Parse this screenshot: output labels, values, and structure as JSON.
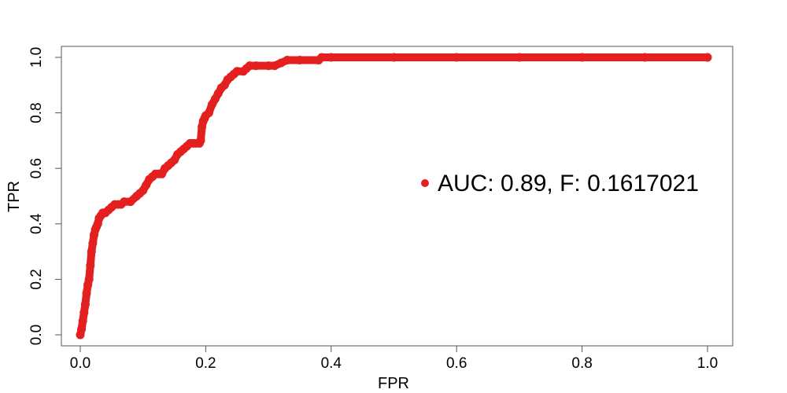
{
  "chart_data": {
    "type": "line",
    "title": "",
    "xlabel": "FPR",
    "ylabel": "TPR",
    "xlim": [
      0,
      1
    ],
    "ylim": [
      0,
      1
    ],
    "x_ticks": [
      "0.0",
      "0.2",
      "0.4",
      "0.6",
      "0.8",
      "1.0"
    ],
    "y_ticks": [
      "0.0",
      "0.2",
      "0.4",
      "0.6",
      "0.8",
      "1.0"
    ],
    "grid": false,
    "legend_position": "right",
    "colors": {
      "series": "#e3201f",
      "axes": "#000000",
      "background": "#ffffff"
    },
    "legend_label": "AUC: 0.89, F: 0.1617021",
    "series": [
      {
        "name": "AUC: 0.89, F: 0.1617021",
        "x": [
          0.0,
          0.002,
          0.004,
          0.006,
          0.008,
          0.01,
          0.012,
          0.014,
          0.016,
          0.018,
          0.02,
          0.022,
          0.024,
          0.026,
          0.028,
          0.03,
          0.033,
          0.036,
          0.04,
          0.045,
          0.05,
          0.055,
          0.06,
          0.065,
          0.07,
          0.08,
          0.09,
          0.095,
          0.1,
          0.105,
          0.11,
          0.115,
          0.12,
          0.125,
          0.13,
          0.135,
          0.14,
          0.145,
          0.15,
          0.155,
          0.16,
          0.165,
          0.17,
          0.175,
          0.18,
          0.185,
          0.19,
          0.192,
          0.194,
          0.196,
          0.198,
          0.2,
          0.205,
          0.21,
          0.215,
          0.22,
          0.225,
          0.23,
          0.235,
          0.24,
          0.245,
          0.25,
          0.26,
          0.265,
          0.27,
          0.28,
          0.3,
          0.31,
          0.32,
          0.33,
          0.35,
          0.38,
          0.385,
          0.4,
          0.5,
          0.6,
          0.7,
          0.8,
          0.9,
          1.0
        ],
        "y": [
          0.0,
          0.02,
          0.05,
          0.08,
          0.11,
          0.15,
          0.18,
          0.2,
          0.25,
          0.3,
          0.33,
          0.36,
          0.38,
          0.39,
          0.4,
          0.42,
          0.43,
          0.44,
          0.44,
          0.45,
          0.46,
          0.47,
          0.47,
          0.47,
          0.48,
          0.48,
          0.5,
          0.51,
          0.52,
          0.54,
          0.56,
          0.57,
          0.58,
          0.58,
          0.58,
          0.6,
          0.61,
          0.62,
          0.63,
          0.65,
          0.66,
          0.67,
          0.68,
          0.69,
          0.69,
          0.69,
          0.69,
          0.7,
          0.75,
          0.77,
          0.78,
          0.79,
          0.8,
          0.83,
          0.85,
          0.87,
          0.89,
          0.9,
          0.92,
          0.93,
          0.94,
          0.95,
          0.95,
          0.96,
          0.97,
          0.97,
          0.97,
          0.97,
          0.98,
          0.99,
          0.99,
          0.99,
          1.0,
          1.0,
          1.0,
          1.0,
          1.0,
          1.0,
          1.0,
          1.0
        ]
      }
    ]
  }
}
